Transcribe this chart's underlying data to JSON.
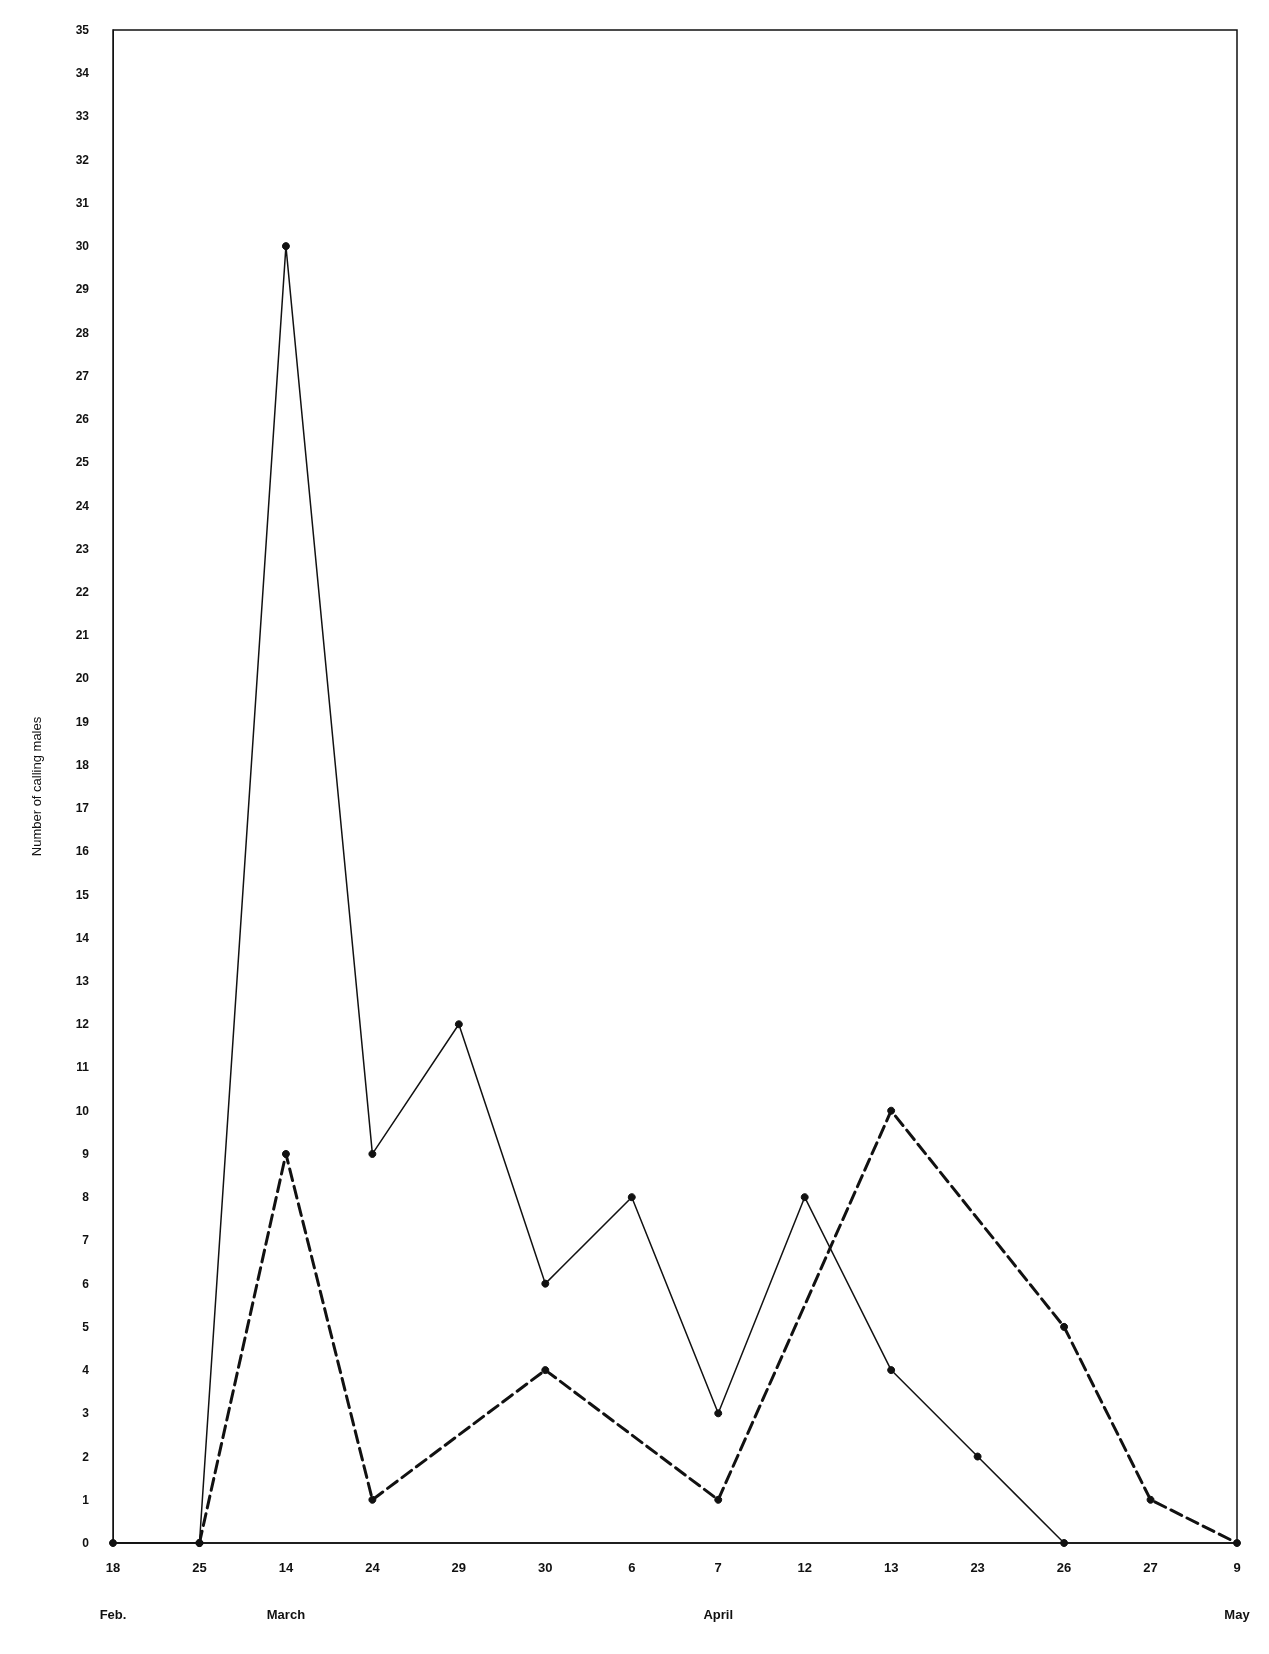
{
  "chart_data": {
    "type": "line",
    "ylabel": "Number of calling males",
    "categories": [
      "18",
      "25",
      "14",
      "24",
      "29",
      "30",
      "6",
      "7",
      "12",
      "13",
      "23",
      "26",
      "27",
      "9"
    ],
    "series": [
      {
        "color": "#111111",
        "line_style": "solid",
        "values": [
          0,
          0,
          30,
          9,
          12,
          6,
          8,
          3,
          8,
          4,
          2,
          0,
          null,
          null
        ]
      },
      {
        "color": "#111111",
        "line_style": "dashed",
        "values": [
          null,
          0,
          9,
          1,
          null,
          4,
          null,
          1,
          null,
          10,
          null,
          5,
          1,
          0
        ]
      }
    ],
    "ylim": [
      0,
      35
    ],
    "yticks": [
      0,
      1,
      2,
      3,
      4,
      5,
      6,
      7,
      8,
      9,
      10,
      11,
      12,
      13,
      14,
      15,
      16,
      17,
      18,
      19,
      20,
      21,
      22,
      23,
      24,
      25,
      26,
      27,
      28,
      29,
      30,
      31,
      32,
      33,
      34,
      35
    ],
    "grid": false,
    "marker": "circle",
    "annotations": [
      "Feb.",
      "March",
      "April",
      "May"
    ]
  }
}
